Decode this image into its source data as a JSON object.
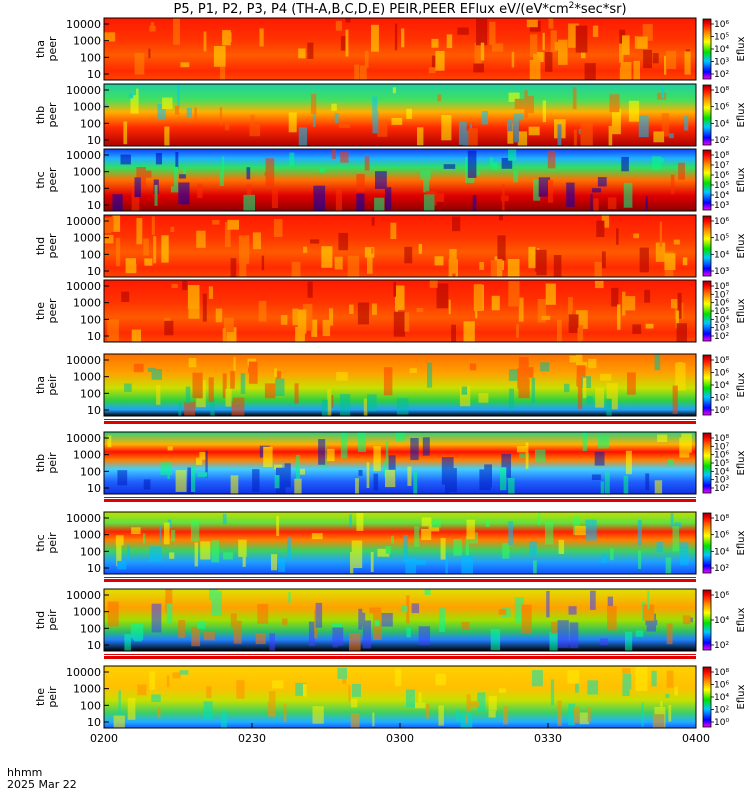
{
  "chart_data": {
    "type": "heatmap",
    "title_parts": [
      "P5, P1, P2, P3, P4 (TH-A,B,C,D,E) PEIR,PEER EFlux eV/(eV*cm",
      "2",
      "*sec*sr)"
    ],
    "x_axis": {
      "ticks": [
        "0200",
        "0230",
        "0300",
        "0330",
        "0400"
      ],
      "range": [
        "0200",
        "0400"
      ],
      "label_line1": "hhmm",
      "label_line2": "2025 Mar 22"
    },
    "colorbar_label": "Eflux",
    "panels": [
      {
        "name": "peer_a",
        "ylabel": [
          "tha",
          "peer"
        ],
        "y_ticks": [
          "10000",
          "1000",
          "100",
          "10"
        ],
        "cb_ticks": [
          "10⁶",
          "10⁵",
          "10⁴",
          "10³",
          "10²"
        ],
        "palette": "red-dominant",
        "scale": "log"
      },
      {
        "name": "peer_b",
        "ylabel": [
          "thb",
          "peer"
        ],
        "y_ticks": [
          "10000",
          "1000",
          "100",
          "10"
        ],
        "cb_ticks": [
          "10⁸",
          "10⁶",
          "10⁴",
          "10²"
        ],
        "palette": "green-over-red",
        "scale": "log"
      },
      {
        "name": "peer_c",
        "ylabel": [
          "thc",
          "peer"
        ],
        "y_ticks": [
          "10000",
          "1000",
          "100",
          "10"
        ],
        "cb_ticks": [
          "10⁸",
          "10⁷",
          "10⁶",
          "10⁵",
          "10⁴",
          "10³"
        ],
        "palette": "blue-green-red",
        "scale": "log"
      },
      {
        "name": "peer_d",
        "ylabel": [
          "thd",
          "peer"
        ],
        "y_ticks": [
          "10000",
          "1000",
          "100",
          "10"
        ],
        "cb_ticks": [
          "10⁶",
          "10⁵",
          "10⁴",
          "10³"
        ],
        "palette": "red-dominant",
        "scale": "log"
      },
      {
        "name": "peer_e",
        "ylabel": [
          "the",
          "peer"
        ],
        "y_ticks": [
          "10000",
          "1000",
          "100",
          "10"
        ],
        "cb_ticks": [
          "10⁸",
          "10⁷",
          "10⁶",
          "10⁵",
          "10⁴",
          "10³",
          "10²"
        ],
        "palette": "red-dominant",
        "scale": "log"
      },
      {
        "name": "peir_a",
        "ylabel": [
          "tha",
          "peir"
        ],
        "y_ticks": [
          "10000",
          "1000",
          "100",
          "10"
        ],
        "cb_ticks": [
          "10⁸",
          "10⁶",
          "10⁴",
          "10²",
          "10⁰"
        ],
        "palette": "orange-green",
        "scale": "log"
      },
      {
        "name": "peir_b",
        "ylabel": [
          "thb",
          "peir"
        ],
        "y_ticks": [
          "10000",
          "1000",
          "100",
          "10"
        ],
        "cb_ticks": [
          "10⁸",
          "10⁷",
          "10⁶",
          "10⁵",
          "10⁴",
          "10³",
          "10²"
        ],
        "palette": "band-red-blue",
        "scale": "log"
      },
      {
        "name": "peir_c",
        "ylabel": [
          "thc",
          "peir"
        ],
        "y_ticks": [
          "10000",
          "1000",
          "100",
          "10"
        ],
        "cb_ticks": [
          "10⁸",
          "10⁶",
          "10⁴",
          "10²"
        ],
        "palette": "band-red-green",
        "scale": "log"
      },
      {
        "name": "peir_d",
        "ylabel": [
          "thd",
          "peir"
        ],
        "y_ticks": [
          "10000",
          "1000",
          "100",
          "10"
        ],
        "cb_ticks": [
          "10⁶",
          "10⁴",
          "10²"
        ],
        "palette": "yellow-green-blue",
        "scale": "log"
      },
      {
        "name": "peir_e",
        "ylabel": [
          "the",
          "peir"
        ],
        "y_ticks": [
          "10000",
          "1000",
          "100",
          "10"
        ],
        "cb_ticks": [
          "10⁸",
          "10⁶",
          "10⁴",
          "10²",
          "10⁰"
        ],
        "palette": "yellow-green",
        "scale": "log"
      }
    ]
  }
}
